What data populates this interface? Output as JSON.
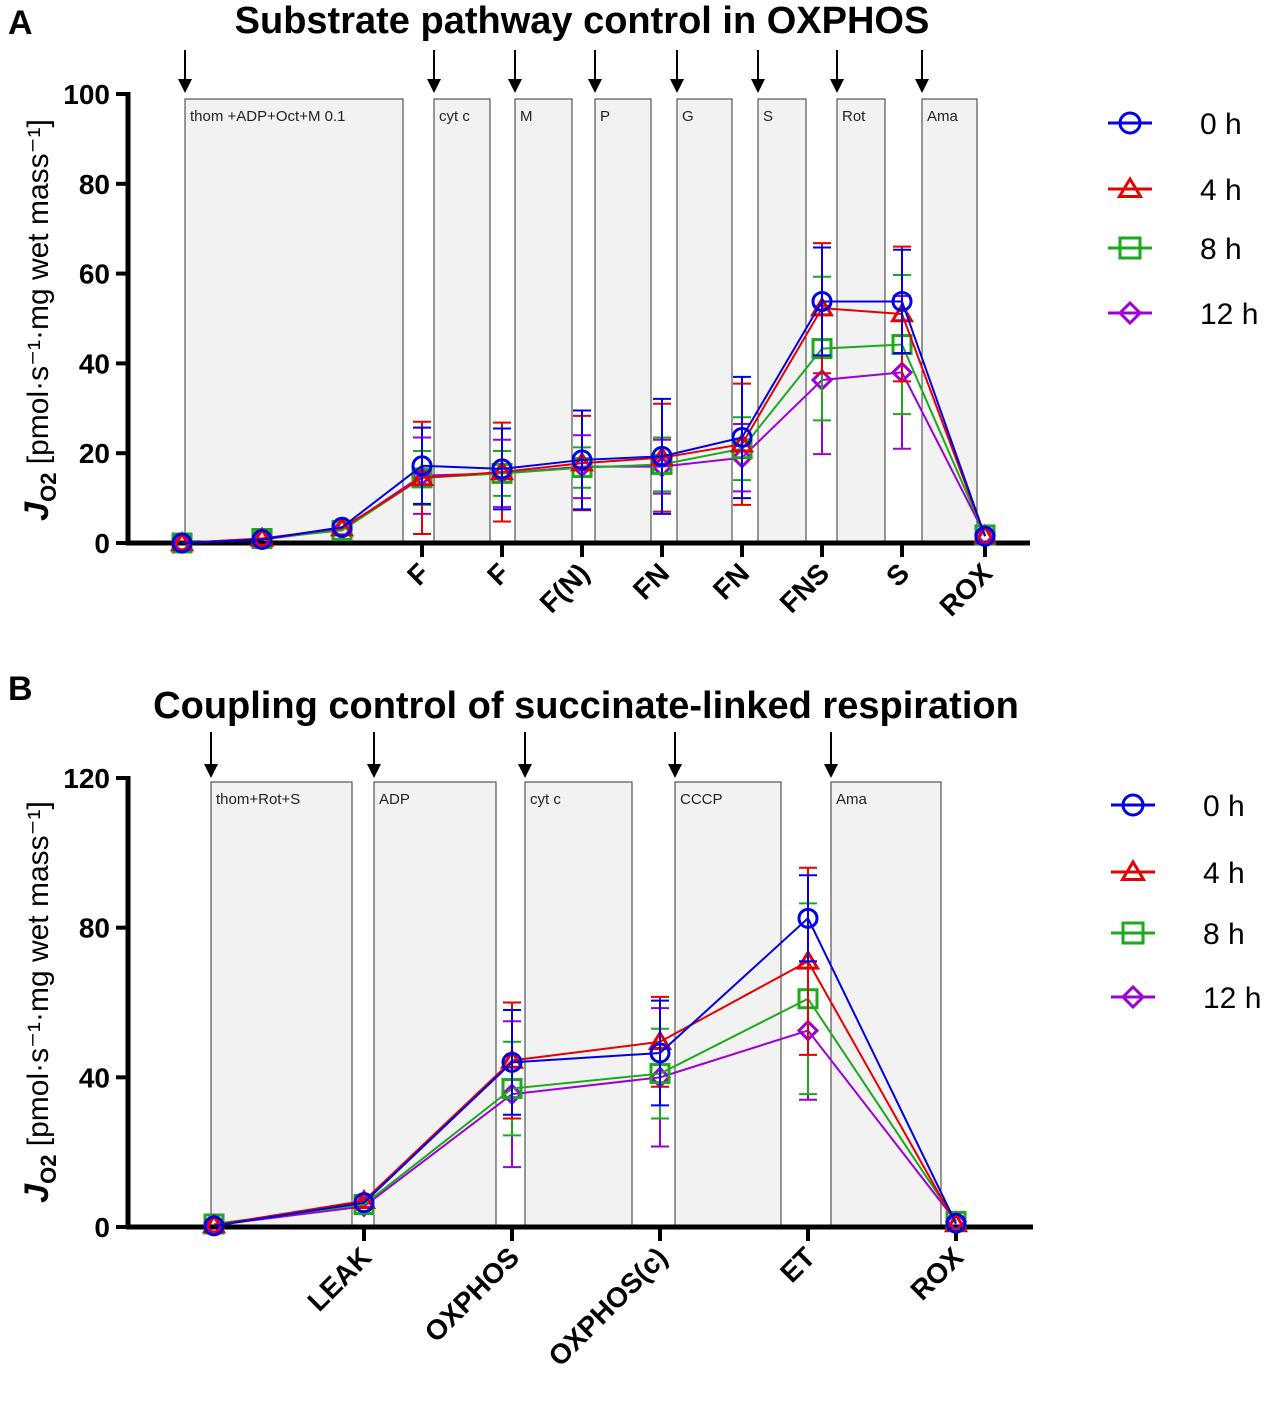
{
  "panels": [
    {
      "letter": "A",
      "chart_data": {
        "type": "line",
        "title": "Substrate pathway control in OXPHOS",
        "ylabel_main": "J",
        "ylabel_sub": "O2",
        "ylabel_rest": " [pmol·s⁻¹·mg wet mass⁻¹]",
        "ylim": [
          0,
          100
        ],
        "yticks": [
          0,
          20,
          40,
          60,
          80,
          100
        ],
        "x_positions": [
          "",
          "",
          "",
          "F",
          "F",
          "F(N)",
          "FN",
          "FN",
          "FNS",
          "S",
          "ROX"
        ],
        "x_labels": [
          "F",
          "F",
          "F(N)",
          "FN",
          "FN",
          "FNS",
          "S",
          "ROX"
        ],
        "titration_boxes": [
          "thom +ADP+Oct+M 0.1",
          "cyt c",
          "M",
          "P",
          "G",
          "S",
          "Rot",
          "Ama"
        ],
        "legend": [
          "0 h",
          "4 h",
          "8 h",
          "12 h"
        ],
        "series": [
          {
            "name": "0 h",
            "color": "#0000e6",
            "marker": "circle",
            "values": [
              0,
              0.8,
              3.5,
              17.2,
              16.5,
              18.5,
              19.3,
              23.5,
              53.8,
              53.8,
              1.5
            ],
            "err": [
              0,
              0,
              0,
              8.5,
              9,
              11,
              12.8,
              13.5,
              12,
              11.5,
              0
            ]
          },
          {
            "name": "4 h",
            "color": "#e60000",
            "marker": "triangle",
            "values": [
              0,
              1.0,
              3.3,
              14.5,
              15.8,
              17.8,
              19.0,
              22.0,
              52.3,
              51.0,
              1.5
            ],
            "err": [
              0,
              0,
              0,
              12.5,
              11,
              10.5,
              12,
              13.5,
              14.5,
              15,
              0
            ]
          },
          {
            "name": "8 h",
            "color": "#1aaa1a",
            "marker": "square",
            "values": [
              0,
              1.0,
              2.8,
              14.5,
              15.5,
              16.8,
              17.5,
              21.0,
              43.3,
              44.2,
              1.8
            ],
            "err": [
              0,
              0,
              0,
              6,
              5,
              4.5,
              6,
              7,
              16,
              15.5,
              0
            ]
          },
          {
            "name": "12 h",
            "color": "#9b00d6",
            "marker": "diamond",
            "values": [
              0,
              0.8,
              3.0,
              15.0,
              15.5,
              17.0,
              17.0,
              19.0,
              36.3,
              38.0,
              1.8
            ],
            "err": [
              0,
              0,
              0,
              8.5,
              7.5,
              7,
              6,
              7.5,
              16.5,
              17,
              0
            ]
          }
        ]
      }
    },
    {
      "letter": "B",
      "chart_data": {
        "type": "line",
        "title": "Coupling control of succinate-linked respiration",
        "ylabel_main": "J",
        "ylabel_sub": "O2",
        "ylabel_rest": " [pmol·s⁻¹·mg wet mass⁻¹]",
        "ylim": [
          0,
          120
        ],
        "yticks": [
          0,
          40,
          80,
          120
        ],
        "x_positions": [
          "",
          "LEAK",
          "OXPHOS",
          "OXPHOS(c)",
          "ET",
          "ROX"
        ],
        "x_labels": [
          "LEAK",
          "OXPHOS",
          "OXPHOS(c)",
          "ET",
          "ROX"
        ],
        "titration_boxes": [
          "thom+Rot+S",
          "ADP",
          "cyt c",
          "CCCP",
          "Ama"
        ],
        "legend": [
          "0 h",
          "4 h",
          "8 h",
          "12 h"
        ],
        "series": [
          {
            "name": "0 h",
            "color": "#0000e6",
            "marker": "circle",
            "values": [
              0.3,
              6.5,
              44.0,
              46.5,
              82.5,
              1.0
            ],
            "err": [
              0,
              0,
              14,
              14,
              11.5,
              0
            ]
          },
          {
            "name": "4 h",
            "color": "#e60000",
            "marker": "triangle",
            "values": [
              0.5,
              7.0,
              44.5,
              49.5,
              71.0,
              0.8
            ],
            "err": [
              0,
              0,
              15.5,
              12,
              25,
              0
            ]
          },
          {
            "name": "8 h",
            "color": "#1aaa1a",
            "marker": "square",
            "values": [
              0.8,
              6.0,
              37.0,
              41.0,
              61.0,
              1.5
            ],
            "err": [
              0,
              0,
              12.5,
              12,
              25.5,
              0
            ]
          },
          {
            "name": "12 h",
            "color": "#9b00d6",
            "marker": "diamond",
            "values": [
              0.5,
              5.5,
              35.5,
              40.0,
              52.5,
              1.5
            ],
            "err": [
              0,
              0,
              19.5,
              18.5,
              18.5,
              0
            ]
          }
        ]
      }
    }
  ]
}
